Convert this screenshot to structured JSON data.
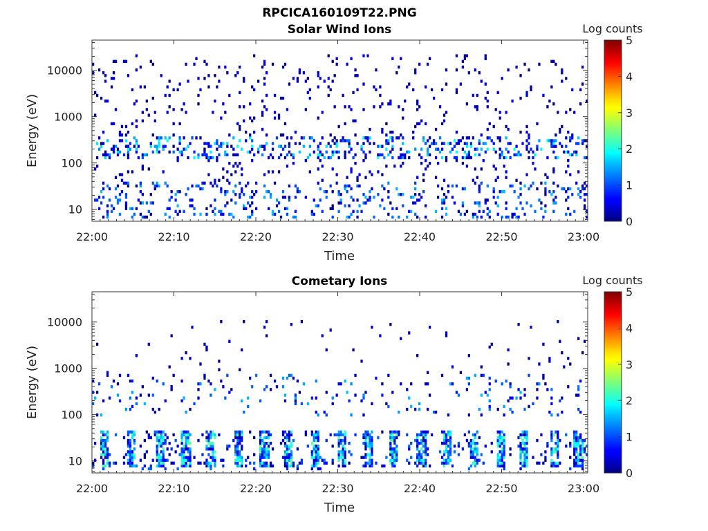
{
  "figure": {
    "title": "RPCICA160109T22.PNG"
  },
  "colorbar": {
    "label": "Log counts",
    "ticks": [
      "0",
      "1",
      "2",
      "3",
      "4",
      "5"
    ],
    "range": [
      0,
      5
    ],
    "colormap": "jet"
  },
  "chart_data": [
    {
      "type": "heatmap",
      "title": "Solar Wind Ions",
      "xlabel": "Time",
      "ylabel": "Energy (eV)",
      "xticks": [
        "22:00",
        "22:10",
        "22:20",
        "22:30",
        "22:40",
        "22:50",
        "23:00"
      ],
      "xlim_minutes": [
        0,
        60.5
      ],
      "yticks": [
        "10",
        "100",
        "1000",
        "10000"
      ],
      "yscale": "log",
      "ylim": [
        5.5,
        45000
      ],
      "zlim": [
        0,
        5
      ],
      "bands": [
        {
          "e_min": 6,
          "e_max": 35,
          "density": 0.13,
          "max_level": 1.6
        },
        {
          "e_min": 120,
          "e_max": 350,
          "density": 0.17,
          "max_level": 2.0
        },
        {
          "e_min": 35,
          "e_max": 20000,
          "density": 0.045,
          "max_level": 0.6
        }
      ]
    },
    {
      "type": "heatmap",
      "title": "Cometary Ions",
      "xlabel": "Time",
      "ylabel": "Energy (eV)",
      "xticks": [
        "22:00",
        "22:10",
        "22:20",
        "22:30",
        "22:40",
        "22:50",
        "23:00"
      ],
      "xlim_minutes": [
        0,
        60.5
      ],
      "yticks": [
        "10",
        "100",
        "1000",
        "10000"
      ],
      "yscale": "log",
      "ylim": [
        5.5,
        45000
      ],
      "zlim": [
        0,
        5
      ],
      "bursts_minutes": [
        1.4,
        4.6,
        8.2,
        11.3,
        14.4,
        17.7,
        20.9,
        23.9,
        27.1,
        30.3,
        33.6,
        36.6,
        40.1,
        43.2,
        46.5,
        49.8,
        52.6,
        56.3,
        59.2
      ],
      "bands": [
        {
          "e_min": 6,
          "e_max": 40,
          "density": 0.08,
          "max_level": 1.2
        },
        {
          "e_min": 80,
          "e_max": 700,
          "density": 0.05,
          "max_level": 1.6
        },
        {
          "e_min": 300,
          "e_max": 10000,
          "density": 0.012,
          "max_level": 0.5
        }
      ]
    }
  ]
}
